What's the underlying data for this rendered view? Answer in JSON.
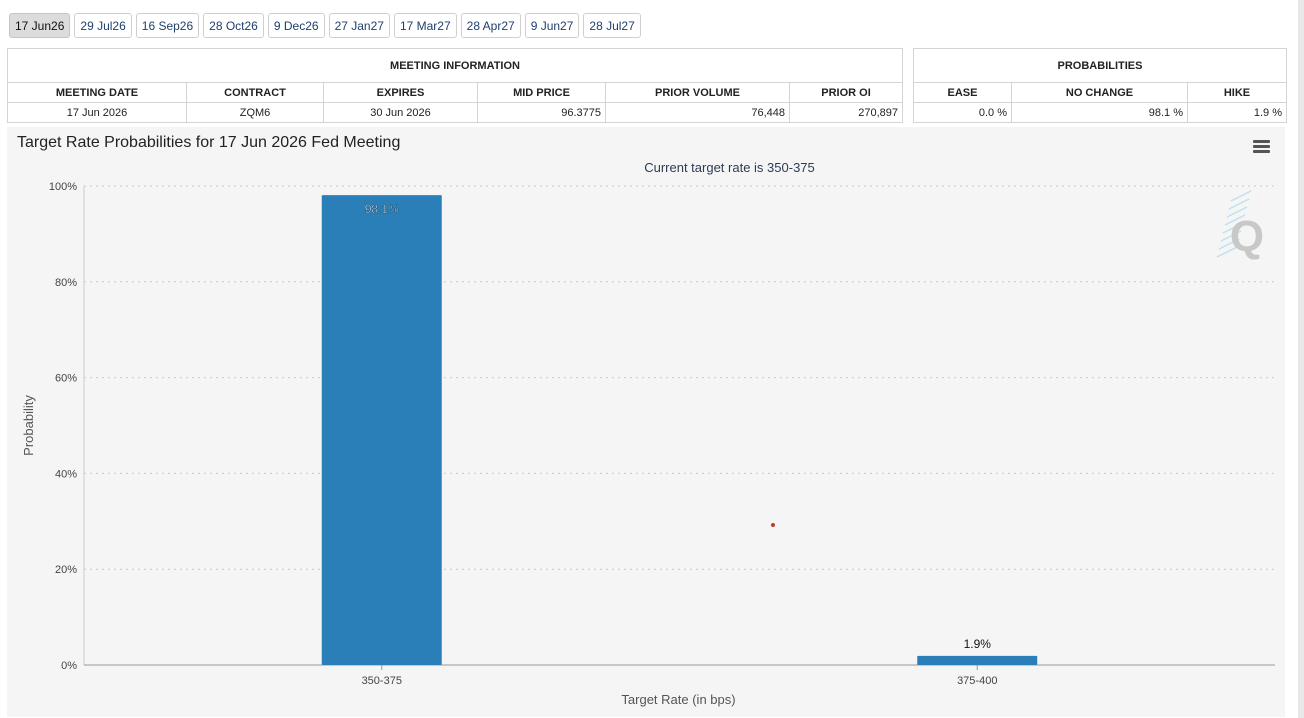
{
  "tabs": [
    {
      "label": "17 Jun26",
      "active": true
    },
    {
      "label": "29 Jul26",
      "active": false
    },
    {
      "label": "16 Sep26",
      "active": false
    },
    {
      "label": "28 Oct26",
      "active": false
    },
    {
      "label": "9 Dec26",
      "active": false
    },
    {
      "label": "27 Jan27",
      "active": false
    },
    {
      "label": "17 Mar27",
      "active": false
    },
    {
      "label": "28 Apr27",
      "active": false
    },
    {
      "label": "9 Jun27",
      "active": false
    },
    {
      "label": "28 Jul27",
      "active": false
    }
  ],
  "meeting_info": {
    "title": "MEETING INFORMATION",
    "headers": [
      "MEETING DATE",
      "CONTRACT",
      "EXPIRES",
      "MID PRICE",
      "PRIOR VOLUME",
      "PRIOR OI"
    ],
    "row": [
      "17 Jun 2026",
      "ZQM6",
      "30 Jun 2026",
      "96.3775",
      "76,448",
      "270,897"
    ]
  },
  "probabilities": {
    "title": "PROBABILITIES",
    "headers": [
      "EASE",
      "NO CHANGE",
      "HIKE"
    ],
    "row": [
      "0.0 %",
      "98.1 %",
      "1.9 %"
    ]
  },
  "chart_data": {
    "type": "bar",
    "title": "Target Rate Probabilities for 17 Jun 2026 Fed Meeting",
    "subtitle": "Current target rate is 350-375",
    "xlabel": "Target Rate (in bps)",
    "ylabel": "Probability",
    "categories": [
      "350-375",
      "375-400"
    ],
    "values": [
      98.1,
      1.9
    ],
    "data_labels": [
      "98.1%",
      "1.9%"
    ],
    "ylim": [
      0,
      100
    ],
    "yticks": [
      0,
      20,
      40,
      60,
      80,
      100
    ],
    "ytick_labels": [
      "0%",
      "20%",
      "40%",
      "60%",
      "80%",
      "100%"
    ],
    "grid": true,
    "bar_color": "#2a7fb8",
    "watermark": "Q"
  },
  "colors": {
    "bar": "#2a7fb8",
    "grid": "#c8c8c8",
    "panel_bg": "#f5f5f5",
    "tab_active_bg": "#dcdcdc"
  }
}
